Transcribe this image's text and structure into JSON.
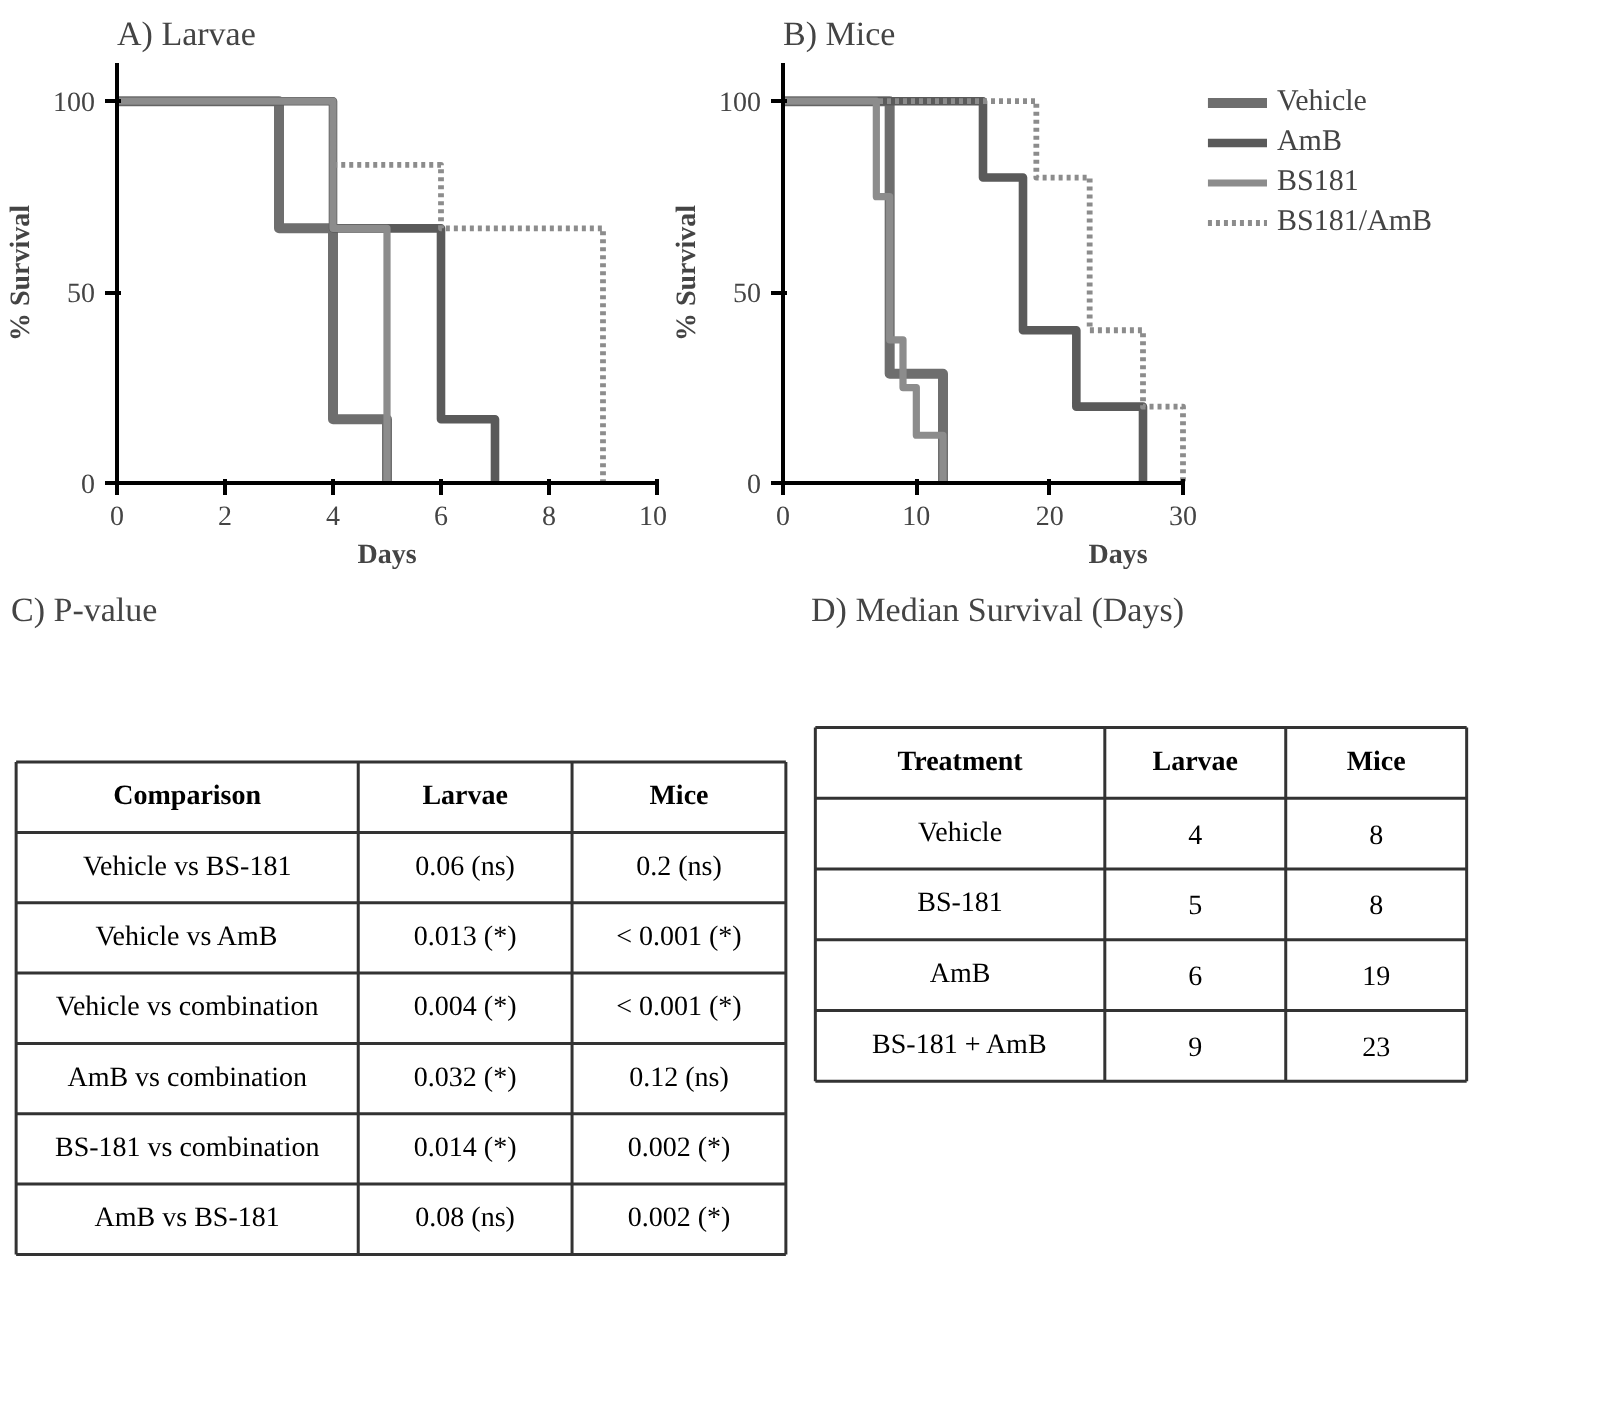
{
  "chart_data": [
    {
      "type": "step",
      "title": "A) Larvae",
      "xlabel": "Days",
      "ylabel": "% Survival",
      "xlim": [
        0,
        10
      ],
      "xticks": [
        0,
        2,
        4,
        6,
        8,
        10
      ],
      "ylim": [
        0,
        110
      ],
      "yticks": [
        0,
        50,
        100
      ],
      "grid": false,
      "legend": false,
      "marker": "none",
      "series": [
        {
          "color": "#6e6e6e",
          "line_style": "solid",
          "x": [
            0,
            3,
            4,
            5
          ],
          "values": [
            100,
            66.7,
            16.7,
            0
          ]
        },
        {
          "color": "#5a5a5a",
          "line_style": "solid",
          "x": [
            0,
            4,
            6,
            7
          ],
          "values": [
            100,
            66.7,
            16.7,
            0
          ]
        },
        {
          "color": "#8c8c8c",
          "line_style": "solid",
          "x": [
            0,
            4,
            5
          ],
          "values": [
            100,
            66.7,
            0
          ]
        },
        {
          "color": "#8c8c8c",
          "line_style": "dotted",
          "x": [
            0,
            4,
            6,
            9
          ],
          "values": [
            100,
            83.3,
            66.7,
            0
          ]
        }
      ]
    },
    {
      "type": "step",
      "title": "B) Mice",
      "xlabel": "Days",
      "ylabel": "% Survival",
      "xlim": [
        0,
        30
      ],
      "xticks": [
        0,
        10,
        20,
        30
      ],
      "ylim": [
        0,
        110
      ],
      "yticks": [
        0,
        50,
        100
      ],
      "grid": false,
      "legend": "right",
      "marker": "none",
      "series": [
        {
          "name": "Vehicle",
          "color": "#6e6e6e",
          "line_style": "solid",
          "x": [
            0,
            8,
            12
          ],
          "values": [
            100,
            28.6,
            0
          ]
        },
        {
          "name": "AmB",
          "color": "#5a5a5a",
          "line_style": "solid",
          "x": [
            0,
            15,
            18,
            22,
            27
          ],
          "values": [
            100,
            80,
            40,
            20,
            0
          ]
        },
        {
          "name": "BS181",
          "color": "#8c8c8c",
          "line_style": "solid",
          "x": [
            0,
            7,
            8,
            9,
            10,
            12
          ],
          "values": [
            100,
            75,
            37.5,
            25,
            12.5,
            0
          ]
        },
        {
          "name": "BS181/AmB",
          "color": "#8c8c8c",
          "line_style": "dotted",
          "x": [
            0,
            19,
            23,
            27,
            30
          ],
          "values": [
            100,
            80,
            40,
            20,
            0
          ]
        }
      ]
    },
    {
      "type": "other",
      "title": "C) P-value",
      "categories": [
        "Comparison",
        "Larvae",
        "Mice"
      ],
      "cell_labels": [
        [
          "Vehicle vs BS-181",
          "0.06 (ns)",
          "0.2 (ns)"
        ],
        [
          "Vehicle vs AmB",
          "0.013 (*)",
          "< 0.001 (*)"
        ],
        [
          "Vehicle vs combination",
          "0.004 (*)",
          "< 0.001 (*)"
        ],
        [
          "AmB vs combination",
          "0.032 (*)",
          "0.12 (ns)"
        ],
        [
          "BS-181 vs combination",
          "0.014 (*)",
          "0.002 (*)"
        ],
        [
          "AmB vs BS-181",
          "0.08 (ns)",
          "0.002 (*)"
        ]
      ]
    },
    {
      "type": "other",
      "title": "D) Median Survival (Days)",
      "categories": [
        "Treatment",
        "Larvae",
        "Mice"
      ],
      "cell_labels": [
        [
          "Vehicle",
          "4",
          "8"
        ],
        [
          "BS-181",
          "5",
          "8"
        ],
        [
          "AmB",
          "6",
          "19"
        ],
        [
          "BS-181 + AmB",
          "9",
          "23"
        ]
      ]
    }
  ]
}
